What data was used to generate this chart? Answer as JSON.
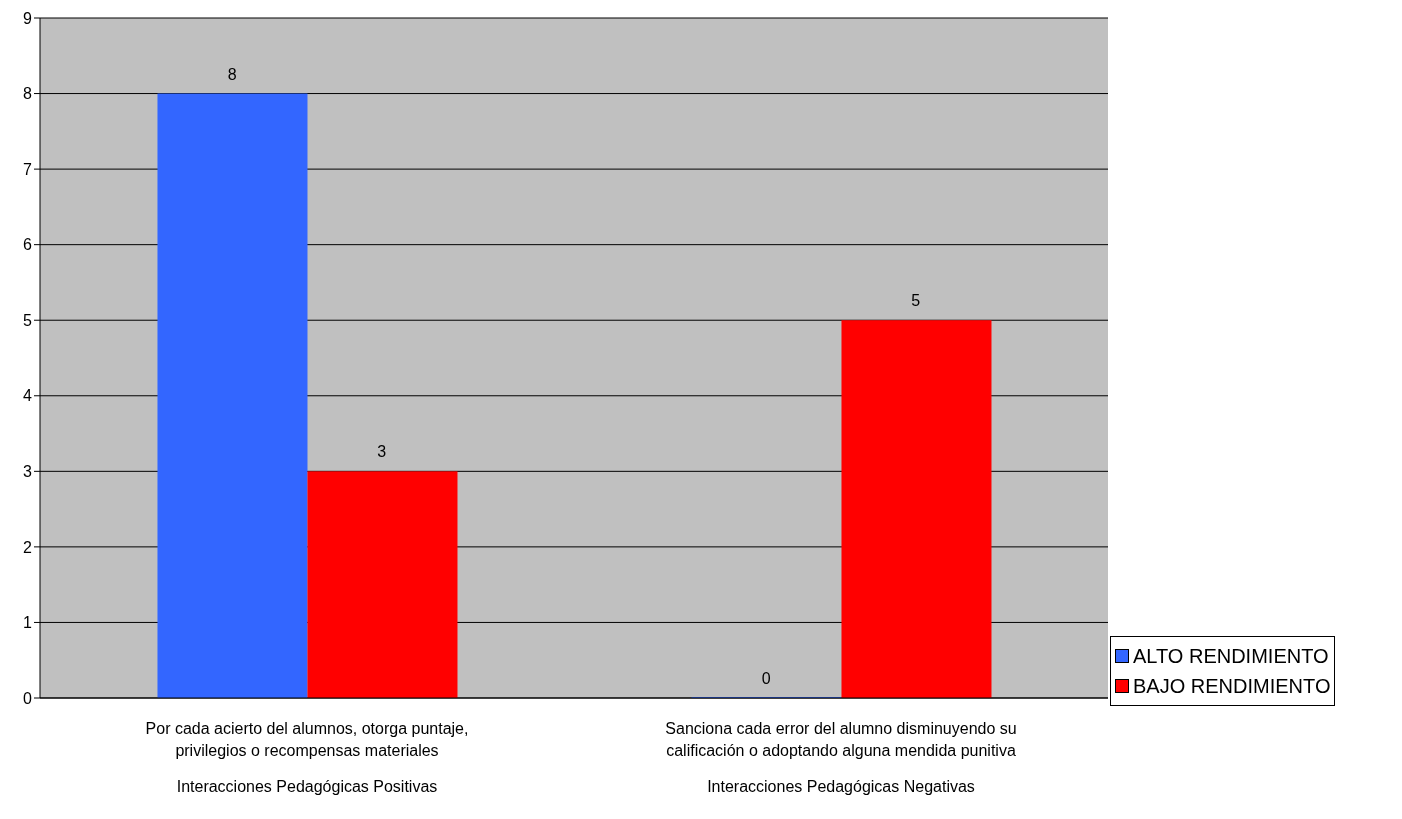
{
  "chart_data": {
    "type": "bar",
    "categories": [
      "Por cada acierto del alumnos, otorga puntaje, privilegios o recompensas materiales",
      "Sanciona cada error del alumno disminuyendo su calificación o adoptando alguna mendida punitiva"
    ],
    "annotations": [
      "Interacciones Pedagógicas Positivas",
      "Interacciones Pedagógicas Negativas"
    ],
    "series": [
      {
        "name": "ALTO RENDIMIENTO",
        "color": "#3366ff",
        "values": [
          8,
          0
        ]
      },
      {
        "name": "BAJO RENDIMIENTO",
        "color": "#ff0000",
        "values": [
          3,
          5
        ]
      }
    ],
    "ylim": [
      0,
      9
    ],
    "yticks": [
      0,
      1,
      2,
      3,
      4,
      5,
      6,
      7,
      8,
      9
    ],
    "grid": "y",
    "legend": "right",
    "data_labels": true
  }
}
